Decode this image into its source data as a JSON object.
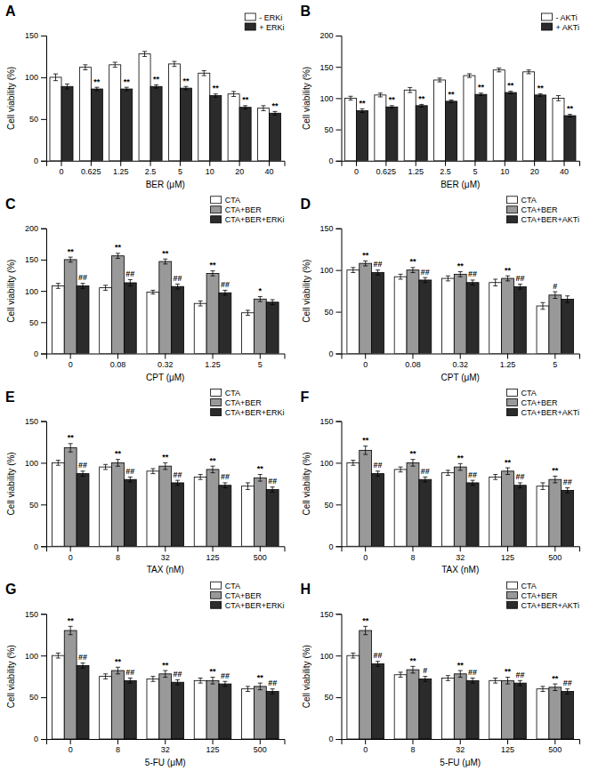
{
  "chart_data": [
    {
      "type": "bar",
      "title": "A",
      "xlabel": "BER (μM)",
      "ylabel": "Cell viability (%)",
      "ylim": [
        0,
        150
      ],
      "yticks": [
        0,
        50,
        100,
        150
      ],
      "categories": [
        "0",
        "0.625",
        "1.25",
        "2.5",
        "5",
        "10",
        "20",
        "40"
      ],
      "series": [
        {
          "name": "- ERKi",
          "color": "#ffffff",
          "values": [
            100,
            112,
            115,
            128,
            116,
            105,
            80,
            63
          ],
          "errors": [
            4,
            3,
            3,
            3,
            3,
            3,
            3,
            3
          ]
        },
        {
          "name": "+ ERKi",
          "color": "#2b2b2b",
          "values": [
            89,
            86,
            86,
            89,
            87,
            78,
            64,
            57
          ],
          "errors": [
            3,
            2,
            2,
            2,
            2,
            2,
            2,
            2
          ],
          "significance": [
            null,
            "**",
            "**",
            "**",
            "**",
            "**",
            "**",
            "**"
          ]
        }
      ],
      "legend": "top-right",
      "grid": false
    },
    {
      "type": "bar",
      "title": "B",
      "xlabel": "BER (μM)",
      "ylabel": "Cell viability (%)",
      "ylim": [
        0,
        200
      ],
      "yticks": [
        0,
        50,
        100,
        150,
        200
      ],
      "categories": [
        "0",
        "0.625",
        "1.25",
        "2.5",
        "5",
        "10",
        "20",
        "40"
      ],
      "series": [
        {
          "name": "- AKTi",
          "color": "#ffffff",
          "values": [
            100,
            105,
            113,
            129,
            136,
            145,
            142,
            100
          ],
          "errors": [
            3,
            3,
            4,
            3,
            3,
            3,
            3,
            4
          ]
        },
        {
          "name": "+ AKTi",
          "color": "#2b2b2b",
          "values": [
            80,
            86,
            88,
            95,
            106,
            109,
            105,
            72
          ],
          "errors": [
            3,
            2,
            2,
            2,
            2,
            2,
            2,
            2
          ],
          "significance": [
            "**",
            "**",
            "**",
            "**",
            "**",
            "**",
            "**",
            "**"
          ]
        }
      ],
      "legend": "top-right",
      "grid": false
    },
    {
      "type": "bar",
      "title": "C",
      "xlabel": "CPT (μM)",
      "ylabel": "Cell viability (%)",
      "ylim": [
        0,
        200
      ],
      "yticks": [
        0,
        50,
        100,
        150,
        200
      ],
      "categories": [
        "0",
        "0.08",
        "0.32",
        "1.25",
        "5"
      ],
      "series": [
        {
          "name": "CTA",
          "color": "#ffffff",
          "values": [
            108,
            105,
            98,
            80,
            65
          ],
          "errors": [
            4,
            4,
            3,
            4,
            4
          ]
        },
        {
          "name": "CTA+BER",
          "color": "#999999",
          "values": [
            150,
            156,
            147,
            128,
            87
          ],
          "errors": [
            4,
            4,
            4,
            4,
            4
          ],
          "significance": [
            "**",
            "**",
            "**",
            "**",
            "*"
          ]
        },
        {
          "name": "CTA+BER+ERKi",
          "color": "#2b2b2b",
          "values": [
            108,
            113,
            107,
            97,
            82
          ],
          "errors": [
            4,
            5,
            4,
            4,
            4
          ],
          "significance": [
            "##",
            "##",
            "##",
            "##",
            null
          ]
        }
      ],
      "legend": "top-right",
      "grid": false
    },
    {
      "type": "bar",
      "title": "D",
      "xlabel": "CPT (μM)",
      "ylabel": "Cell viability (%)",
      "ylim": [
        0,
        150
      ],
      "yticks": [
        0,
        50,
        100,
        150
      ],
      "categories": [
        "0",
        "0.08",
        "0.32",
        "1.25",
        "5"
      ],
      "series": [
        {
          "name": "CTA",
          "color": "#ffffff",
          "values": [
            100,
            92,
            90,
            85,
            57
          ],
          "errors": [
            3,
            3,
            3,
            4,
            4
          ]
        },
        {
          "name": "CTA+BER",
          "color": "#999999",
          "values": [
            108,
            100,
            95,
            90,
            70
          ],
          "errors": [
            3,
            3,
            3,
            3,
            4
          ],
          "significance": [
            "**",
            "**",
            "**",
            "**",
            "#"
          ]
        },
        {
          "name": "CTA+BER+AKTi",
          "color": "#2b2b2b",
          "values": [
            97,
            88,
            85,
            80,
            65
          ],
          "errors": [
            3,
            3,
            3,
            3,
            4
          ],
          "significance": [
            "##",
            "##",
            "##",
            "##",
            null
          ]
        }
      ],
      "legend": "top-right",
      "grid": false
    },
    {
      "type": "bar",
      "title": "E",
      "xlabel": "TAX (nM)",
      "ylabel": "Cell viability (%)",
      "ylim": [
        0,
        150
      ],
      "yticks": [
        0,
        50,
        100,
        150
      ],
      "categories": [
        "0",
        "8",
        "32",
        "125",
        "500"
      ],
      "series": [
        {
          "name": "CTA",
          "color": "#ffffff",
          "values": [
            100,
            95,
            90,
            83,
            72
          ],
          "errors": [
            3,
            3,
            3,
            3,
            4
          ]
        },
        {
          "name": "CTA+BER",
          "color": "#999999",
          "values": [
            118,
            100,
            96,
            92,
            82
          ],
          "errors": [
            5,
            4,
            4,
            4,
            4
          ],
          "significance": [
            "**",
            "**",
            "**",
            "**",
            "**"
          ]
        },
        {
          "name": "CTA+BER+ERKi",
          "color": "#2b2b2b",
          "values": [
            87,
            80,
            76,
            73,
            68
          ],
          "errors": [
            3,
            3,
            3,
            3,
            3
          ],
          "significance": [
            "##",
            "##",
            "##",
            "##",
            "##"
          ]
        }
      ],
      "legend": "top-right",
      "grid": false
    },
    {
      "type": "bar",
      "title": "F",
      "xlabel": "TAX (nM)",
      "ylabel": "Cell viability (%)",
      "ylim": [
        0,
        150
      ],
      "yticks": [
        0,
        50,
        100,
        150
      ],
      "categories": [
        "0",
        "8",
        "32",
        "125",
        "500"
      ],
      "series": [
        {
          "name": "CTA",
          "color": "#ffffff",
          "values": [
            100,
            92,
            88,
            83,
            72
          ],
          "errors": [
            3,
            3,
            3,
            3,
            4
          ]
        },
        {
          "name": "CTA+BER",
          "color": "#999999",
          "values": [
            115,
            100,
            95,
            90,
            80
          ],
          "errors": [
            5,
            4,
            4,
            4,
            4
          ],
          "significance": [
            "**",
            "**",
            "**",
            "**",
            "**"
          ]
        },
        {
          "name": "CTA+BER+AKTi",
          "color": "#2b2b2b",
          "values": [
            87,
            80,
            76,
            73,
            67
          ],
          "errors": [
            3,
            3,
            3,
            3,
            3
          ],
          "significance": [
            "##",
            "##",
            "##",
            "##",
            "##"
          ]
        }
      ],
      "legend": "top-right",
      "grid": false
    },
    {
      "type": "bar",
      "title": "G",
      "xlabel": "5-FU (μM)",
      "ylabel": "Cell viability (%)",
      "ylim": [
        0,
        150
      ],
      "yticks": [
        0,
        50,
        100,
        150
      ],
      "categories": [
        "0",
        "8",
        "32",
        "125",
        "500"
      ],
      "series": [
        {
          "name": "CTA",
          "color": "#ffffff",
          "values": [
            100,
            75,
            72,
            70,
            60
          ],
          "errors": [
            3,
            3,
            3,
            3,
            3
          ]
        },
        {
          "name": "CTA+BER",
          "color": "#999999",
          "values": [
            130,
            82,
            78,
            70,
            63
          ],
          "errors": [
            5,
            4,
            4,
            4,
            4
          ],
          "significance": [
            "**",
            "**",
            "**",
            "**",
            "**"
          ]
        },
        {
          "name": "CTA+BER+ERKi",
          "color": "#2b2b2b",
          "values": [
            88,
            70,
            68,
            66,
            57
          ],
          "errors": [
            3,
            3,
            3,
            3,
            3
          ],
          "significance": [
            "##",
            "##",
            "##",
            "##",
            "##"
          ]
        }
      ],
      "legend": "top-right",
      "grid": false
    },
    {
      "type": "bar",
      "title": "H",
      "xlabel": "5-FU (μM)",
      "ylabel": "Cell viability (%)",
      "ylim": [
        0,
        150
      ],
      "yticks": [
        0,
        50,
        100,
        150
      ],
      "categories": [
        "0",
        "8",
        "32",
        "125",
        "500"
      ],
      "series": [
        {
          "name": "CTA",
          "color": "#ffffff",
          "values": [
            100,
            77,
            73,
            70,
            60
          ],
          "errors": [
            3,
            3,
            3,
            3,
            3
          ]
        },
        {
          "name": "CTA+BER",
          "color": "#999999",
          "values": [
            130,
            83,
            78,
            70,
            62
          ],
          "errors": [
            5,
            4,
            4,
            4,
            4
          ],
          "significance": [
            "**",
            "**",
            "**",
            "**",
            "**"
          ]
        },
        {
          "name": "CTA+BER+AKTi",
          "color": "#2b2b2b",
          "values": [
            90,
            72,
            70,
            67,
            57
          ],
          "errors": [
            3,
            3,
            3,
            3,
            3
          ],
          "significance": [
            "##",
            "#",
            "##",
            "##",
            "##"
          ]
        }
      ],
      "legend": "top-right",
      "grid": false
    }
  ]
}
